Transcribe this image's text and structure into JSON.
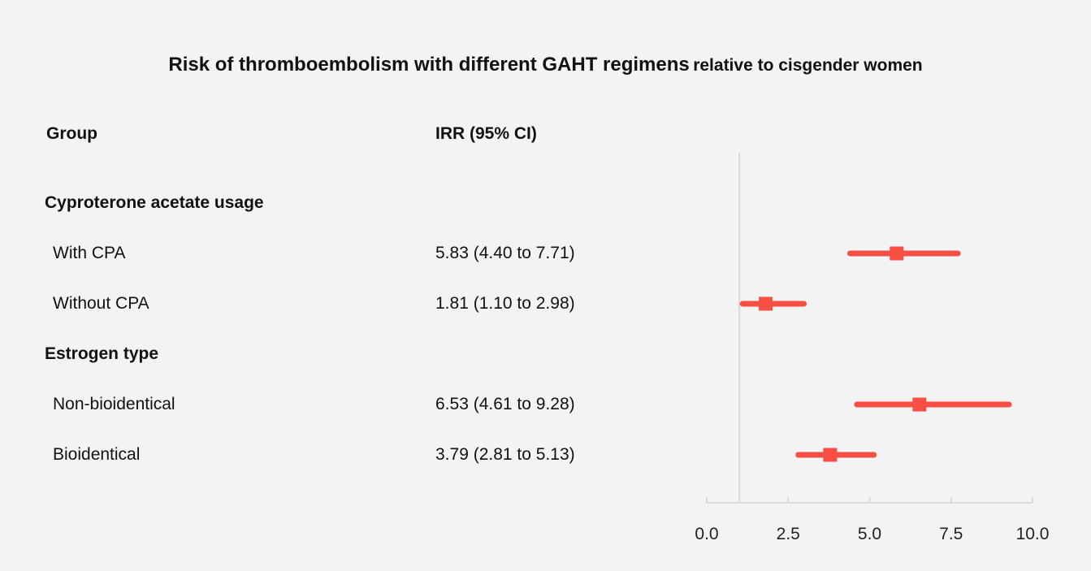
{
  "chart_data": {
    "type": "forest",
    "title": "Risk of thromboembolism with different GAHT regimens",
    "subtitle": "relative to cisgender women",
    "columns": {
      "group": "Group",
      "estimate": "IRR (95% CI)"
    },
    "reference_line": 1.0,
    "xlim": [
      0,
      10
    ],
    "xticks": [
      "0.0",
      "2.5",
      "5.0",
      "7.5",
      "10.0"
    ],
    "marker_color": "#f74f43",
    "sections": [
      {
        "label": "Cyproterone acetate usage",
        "rows": [
          {
            "label": "With CPA",
            "text": "5.83 (4.40 to 7.71)",
            "irr": 5.83,
            "lo": 4.4,
            "hi": 7.71
          },
          {
            "label": "Without CPA",
            "text": "1.81 (1.10 to 2.98)",
            "irr": 1.81,
            "lo": 1.1,
            "hi": 2.98
          }
        ]
      },
      {
        "label": "Estrogen type",
        "rows": [
          {
            "label": "Non-bioidentical",
            "text": "6.53 (4.61 to 9.28)",
            "irr": 6.53,
            "lo": 4.61,
            "hi": 9.28
          },
          {
            "label": "Bioidentical",
            "text": "3.79 (2.81 to 5.13)",
            "irr": 3.79,
            "lo": 2.81,
            "hi": 5.13
          }
        ]
      }
    ]
  }
}
